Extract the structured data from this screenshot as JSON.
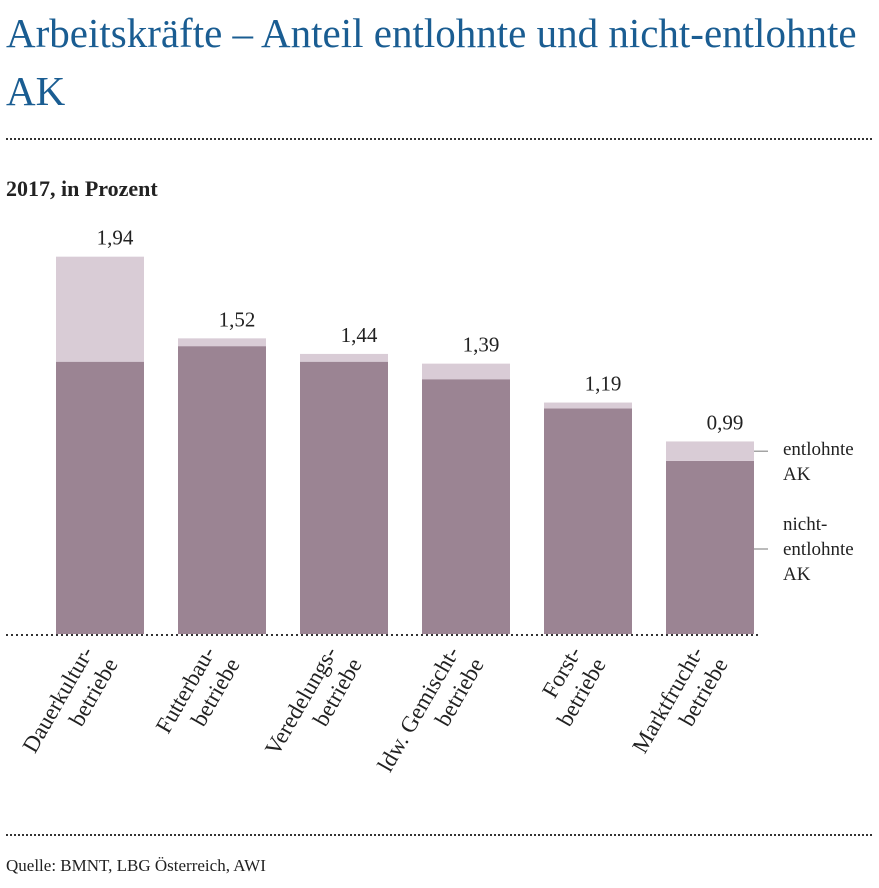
{
  "chart_data": {
    "type": "stacked-bar",
    "title": "Arbeitskräfte – Anteil entlohnte und nicht-entlohnte AK",
    "subtitle": "2017, in Prozent",
    "source": "Quelle: BMNT, LBG Österreich, AWI",
    "categories": [
      [
        "Dauerkultur-",
        "betriebe"
      ],
      [
        "Futterbau-",
        "betriebe"
      ],
      [
        "Veredelungs-",
        "betriebe"
      ],
      [
        "ldw. Gemischt-",
        "betriebe"
      ],
      [
        "Forst-",
        "betriebe"
      ],
      [
        "Marktfrucht-",
        "betriebe"
      ]
    ],
    "series": [
      {
        "name": "nicht-entlohnte AK",
        "color": "#9b8493",
        "values": [
          1.4,
          1.48,
          1.4,
          1.31,
          1.16,
          0.89
        ]
      },
      {
        "name": "entlohnte AK",
        "color": "#d9ccd6",
        "values": [
          0.54,
          0.04,
          0.04,
          0.08,
          0.03,
          0.1
        ]
      }
    ],
    "totals": [
      1.94,
      1.52,
      1.44,
      1.39,
      1.19,
      0.99
    ],
    "total_labels": [
      "1,94",
      "1,52",
      "1,44",
      "1,39",
      "1,19",
      "0,99"
    ],
    "ylim": [
      0,
      2
    ]
  }
}
